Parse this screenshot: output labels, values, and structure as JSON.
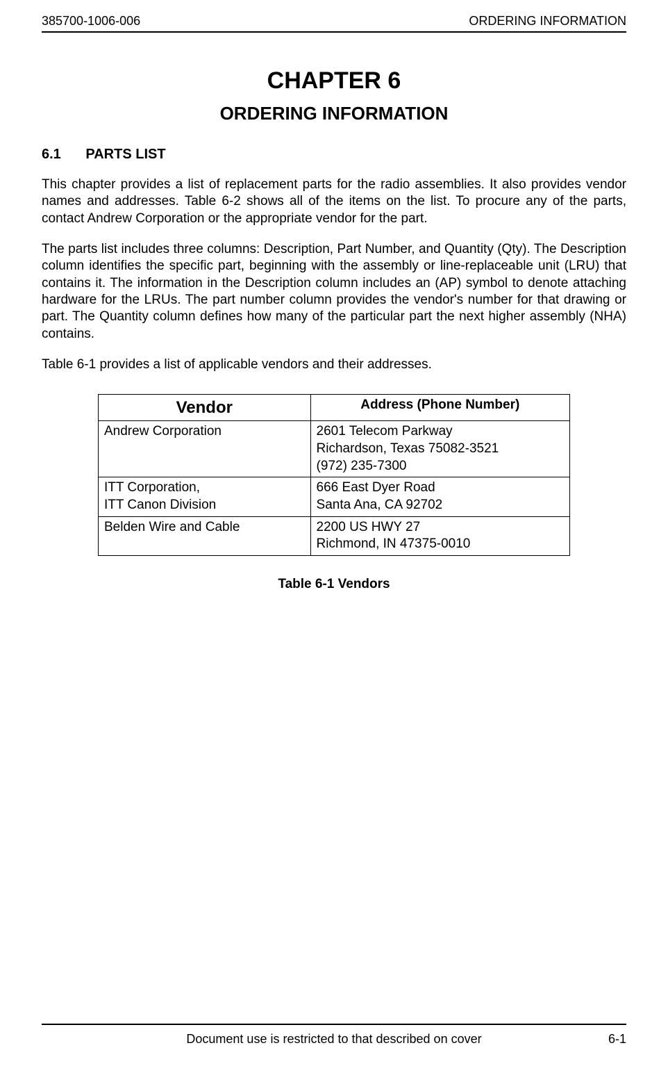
{
  "header": {
    "doc_number": "385700-1006-006",
    "header_title": "ORDERING INFORMATION"
  },
  "chapter": {
    "number": "CHAPTER 6",
    "title": "ORDERING INFORMATION"
  },
  "section": {
    "number": "6.1",
    "title": "PARTS LIST"
  },
  "paragraphs": {
    "p1": "This chapter provides a list of replacement parts for the radio assemblies.  It also provides vendor names and addresses.  Table 6-2 shows all of the items on the list.  To procure any of the parts, contact Andrew Corporation or the appropriate vendor for the part.",
    "p2": "The parts list includes three columns: Description, Part Number, and Quantity (Qty).  The Description column identifies the specific part, beginning with the assembly or line-replaceable unit (LRU) that contains it.  The information in the Description column includes an (AP) symbol to denote attaching hardware for the LRUs.  The part number column provides the vendor's number for that drawing or part.  The Quantity column defines how many of the particular part the next higher assembly (NHA) contains.",
    "p3": "Table 6-1 provides a list of applicable vendors and their addresses."
  },
  "table": {
    "headers": {
      "vendor": "Vendor",
      "address": "Address (Phone Number)"
    },
    "rows": [
      {
        "vendor_l1": "Andrew Corporation",
        "vendor_l2": "",
        "addr_l1": "2601 Telecom Parkway",
        "addr_l2": "Richardson, Texas 75082-3521",
        "addr_l3": "(972) 235-7300"
      },
      {
        "vendor_l1": "ITT Corporation,",
        "vendor_l2": "ITT Canon Division",
        "addr_l1": "666 East Dyer Road",
        "addr_l2": "Santa Ana, CA  92702",
        "addr_l3": ""
      },
      {
        "vendor_l1": "Belden Wire and Cable",
        "vendor_l2": "",
        "addr_l1": "2200 US HWY 27",
        "addr_l2": "Richmond, IN 47375-0010",
        "addr_l3": ""
      }
    ],
    "caption": "Table 6-1  Vendors"
  },
  "footer": {
    "restriction": "Document use is restricted to that described on cover",
    "page_number": "6-1"
  },
  "colors": {
    "text": "#000000",
    "background": "#ffffff",
    "border": "#000000"
  },
  "typography": {
    "body_font": "Arial",
    "chapter_fontsize": 34,
    "title_fontsize": 26,
    "section_fontsize": 20,
    "body_fontsize": 19,
    "header_fontsize": 18,
    "table_vendor_header_fontsize": 24
  }
}
